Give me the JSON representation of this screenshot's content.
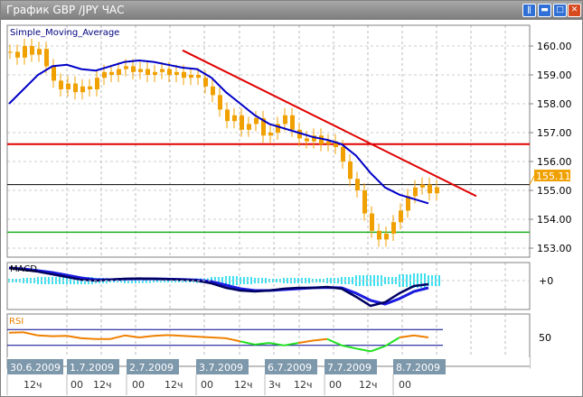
{
  "window": {
    "title": "График GBP /JPY  ЧАС",
    "buttons": [
      "tile-icon",
      "minimize-icon",
      "maximize-icon",
      "close-icon"
    ]
  },
  "colors": {
    "candle": "#f0a000",
    "sma": "#0000c8",
    "trendline": "#e00000",
    "resistance": "#e00000",
    "support": "#20b020",
    "macd_main": "#000060",
    "macd_signal": "#1a1ae0",
    "macd_hist": "#40e0f0",
    "rsi": "#f08000",
    "rsi_low": "#20e020",
    "price_tag": "#f0a000"
  },
  "main": {
    "indicator_label": "Simple_Moving_Average",
    "price_ticks": [
      "160.00",
      "159.00",
      "158.00",
      "157.00",
      "156.00",
      "155.00",
      "154.00",
      "153.00"
    ],
    "current_price": "155.11",
    "resistance_level": 156.6,
    "support_level": 153.55,
    "trendline": {
      "from": {
        "bar": 24,
        "price": 159.85
      },
      "to": {
        "bar": 64,
        "price": 154.8
      }
    },
    "closes": [
      159.8,
      159.6,
      160.0,
      159.7,
      159.9,
      159.3,
      158.8,
      158.5,
      158.7,
      158.4,
      158.6,
      158.5,
      158.9,
      159.1,
      159.0,
      159.2,
      159.3,
      159.1,
      159.2,
      159.0,
      159.1,
      159.2,
      159.0,
      159.1,
      158.9,
      159.0,
      158.9,
      158.6,
      158.3,
      157.8,
      157.4,
      157.6,
      157.1,
      157.3,
      157.5,
      156.9,
      157.0,
      157.3,
      157.6,
      157.1,
      156.8,
      156.7,
      156.9,
      156.6,
      156.7,
      156.5,
      156.0,
      155.4,
      155.0,
      154.2,
      153.6,
      153.3,
      153.5,
      153.9,
      154.3,
      154.8,
      155.1,
      155.2,
      154.9,
      155.11
    ],
    "sma": [
      158.0,
      158.5,
      159.0,
      159.3,
      159.35,
      159.2,
      159.15,
      159.3,
      159.45,
      159.5,
      159.45,
      159.35,
      159.25,
      159.2,
      158.9,
      158.4,
      158.0,
      157.6,
      157.3,
      157.15,
      157.0,
      156.85,
      156.75,
      156.6,
      156.2,
      155.6,
      155.1,
      154.85,
      154.7,
      154.55
    ]
  },
  "macd": {
    "label": "MACD",
    "zero_label": "+0",
    "main": [
      0.07,
      0.06,
      0.05,
      0.035,
      0.02,
      0.005,
      0.0,
      0.005,
      0.01,
      0.012,
      0.01,
      0.008,
      0.005,
      0.0,
      -0.015,
      -0.04,
      -0.055,
      -0.06,
      -0.055,
      -0.045,
      -0.04,
      -0.04,
      -0.035,
      -0.045,
      -0.09,
      -0.14,
      -0.12,
      -0.07,
      -0.03,
      -0.02
    ],
    "signal": [
      0.07,
      0.065,
      0.055,
      0.045,
      0.03,
      0.015,
      0.005,
      0.005,
      0.008,
      0.01,
      0.01,
      0.008,
      0.006,
      0.003,
      -0.005,
      -0.025,
      -0.045,
      -0.055,
      -0.055,
      -0.05,
      -0.045,
      -0.04,
      -0.038,
      -0.04,
      -0.07,
      -0.11,
      -0.13,
      -0.1,
      -0.06,
      -0.04
    ],
    "histogram": [
      0,
      -0.005,
      -0.01,
      -0.01,
      -0.01,
      -0.01,
      -0.005,
      0,
      0.005,
      0.003,
      0,
      0,
      0,
      -0.003,
      -0.01,
      -0.015,
      -0.01,
      -0.005,
      0,
      0.005,
      0.005,
      0,
      -0.005,
      -0.01,
      -0.02,
      -0.02,
      0.01,
      0.025,
      0.03,
      0.02
    ]
  },
  "rsi": {
    "label": "RSI",
    "tick": "50",
    "upper": 70,
    "lower": 30,
    "values": [
      62,
      63,
      55,
      53,
      54,
      48,
      46,
      46,
      55,
      50,
      54,
      56,
      54,
      52,
      50,
      48,
      40,
      32,
      36,
      30,
      36,
      42,
      46,
      30,
      22,
      15,
      28,
      50,
      55,
      50
    ]
  },
  "time_axis": {
    "dates": [
      "30.6.2009",
      "1.7.2009",
      "2.7.2009",
      "3.7.2009",
      "6.7.2009",
      "7.7.2009",
      "8.7.2009"
    ],
    "hours": [
      "12ч",
      "00",
      "12ч",
      "00",
      "12ч",
      "00",
      "12ч",
      "3ч",
      "12ч",
      "00",
      "12ч",
      "00"
    ]
  }
}
